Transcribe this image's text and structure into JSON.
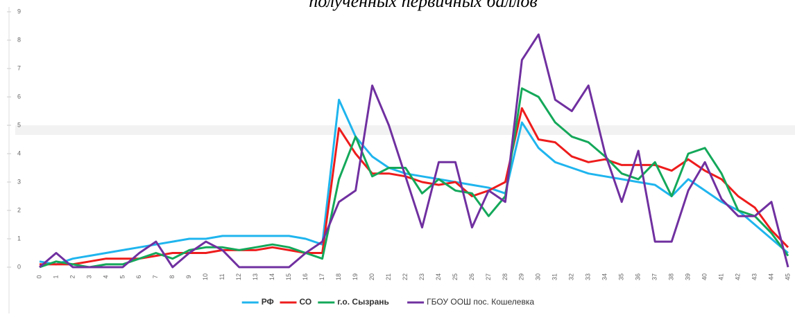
{
  "chart_data": {
    "type": "line",
    "title": "полученных первичных баллов",
    "categories": [
      "0",
      "1",
      "2",
      "3",
      "4",
      "5",
      "6",
      "7",
      "8",
      "9",
      "10",
      "11",
      "12",
      "13",
      "14",
      "15",
      "16",
      "17",
      "18",
      "19",
      "20",
      "21",
      "22",
      "23",
      "24",
      "25",
      "26",
      "27",
      "28",
      "29",
      "30",
      "31",
      "32",
      "33",
      "34",
      "35",
      "36",
      "37",
      "38",
      "39",
      "40",
      "41",
      "42",
      "43",
      "44",
      "45"
    ],
    "ylim": [
      0,
      9
    ],
    "yticks": [
      0,
      1,
      2,
      3,
      4,
      5,
      6,
      7,
      8,
      9
    ],
    "grid": false,
    "legend": "bottom",
    "series": [
      {
        "name": "РФ",
        "color": "#1fb5ee",
        "values": [
          0.2,
          0.1,
          0.3,
          0.4,
          0.5,
          0.6,
          0.7,
          0.8,
          0.9,
          1.0,
          1.0,
          1.1,
          1.1,
          1.1,
          1.1,
          1.1,
          1.0,
          0.8,
          5.9,
          4.6,
          3.9,
          3.5,
          3.3,
          3.2,
          3.1,
          3.0,
          2.9,
          2.8,
          2.6,
          5.1,
          4.2,
          3.7,
          3.5,
          3.3,
          3.2,
          3.1,
          3.0,
          2.9,
          2.5,
          3.1,
          2.7,
          2.3,
          2.0,
          1.5,
          1.0,
          0.5
        ]
      },
      {
        "name": "СО",
        "color": "#ee1c1c",
        "values": [
          0.1,
          0.1,
          0.1,
          0.2,
          0.3,
          0.3,
          0.3,
          0.4,
          0.5,
          0.5,
          0.5,
          0.6,
          0.6,
          0.6,
          0.7,
          0.6,
          0.5,
          0.5,
          4.9,
          4.0,
          3.3,
          3.3,
          3.2,
          3.0,
          2.9,
          3.0,
          2.5,
          2.7,
          3.0,
          5.6,
          4.5,
          4.4,
          3.9,
          3.7,
          3.8,
          3.6,
          3.6,
          3.6,
          3.4,
          3.8,
          3.4,
          3.1,
          2.5,
          2.1,
          1.3,
          0.7
        ]
      },
      {
        "name": "г.о. Сызрань",
        "color": "#14a85a",
        "values": [
          0,
          0.2,
          0.1,
          0,
          0.1,
          0.1,
          0.3,
          0.5,
          0.3,
          0.6,
          0.7,
          0.7,
          0.6,
          0.7,
          0.8,
          0.7,
          0.5,
          0.3,
          3.1,
          4.6,
          3.2,
          3.5,
          3.5,
          2.6,
          3.1,
          2.7,
          2.6,
          1.8,
          2.5,
          6.3,
          6.0,
          5.1,
          4.6,
          4.4,
          3.9,
          3.3,
          3.1,
          3.7,
          2.5,
          4.0,
          4.2,
          3.3,
          2.0,
          1.8,
          1.2,
          0.4
        ]
      },
      {
        "name": "ГБОУ ООШ пос. Кошелевка",
        "color": "#7030a0",
        "values": [
          0,
          0.5,
          0,
          0,
          0,
          0,
          0.5,
          0.9,
          0,
          0.5,
          0.9,
          0.6,
          0,
          0,
          0,
          0,
          0.5,
          0.9,
          2.3,
          2.7,
          6.4,
          5.0,
          3.2,
          1.4,
          3.7,
          3.7,
          1.4,
          2.7,
          2.3,
          7.3,
          8.2,
          5.9,
          5.5,
          6.4,
          4.0,
          2.3,
          4.1,
          0.9,
          0.9,
          2.7,
          3.7,
          2.4,
          1.8,
          1.8,
          2.3,
          0
        ]
      }
    ]
  }
}
